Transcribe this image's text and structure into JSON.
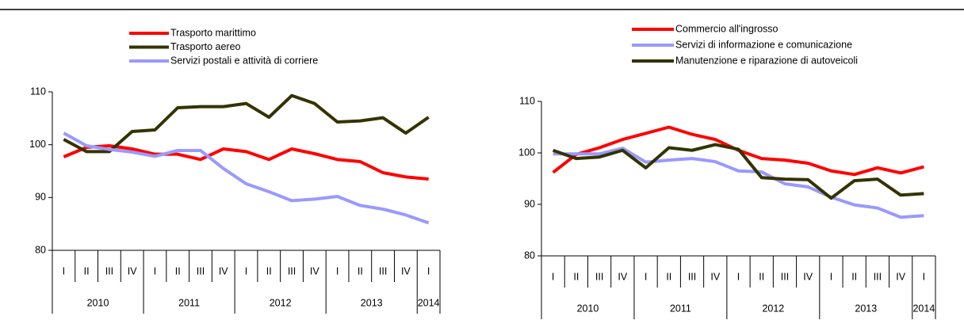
{
  "chart_data": [
    {
      "type": "line",
      "categories": [
        "I",
        "II",
        "III",
        "IV",
        "I",
        "II",
        "III",
        "IV",
        "I",
        "II",
        "III",
        "IV",
        "I",
        "II",
        "III",
        "IV",
        "I"
      ],
      "years": [
        "2010",
        "2011",
        "2012",
        "2013",
        "2014"
      ],
      "ylim": [
        80,
        110
      ],
      "yticks": [
        80,
        90,
        100,
        110
      ],
      "series": [
        {
          "name": "Trasporto marittimo",
          "color": "#ff0000",
          "values": [
            97.7,
            99.5,
            99.8,
            99.2,
            98.2,
            98.2,
            97.2,
            99.2,
            98.7,
            97.2,
            99.2,
            98.3,
            97.2,
            96.8,
            94.7,
            93.9,
            93.5
          ]
        },
        {
          "name": "Trasporto aereo",
          "color": "#333300",
          "values": [
            101,
            98.7,
            98.7,
            102.5,
            102.8,
            107,
            107.2,
            107.2,
            107.8,
            105.2,
            109.3,
            107.8,
            104.3,
            104.5,
            105.1,
            102.2,
            105.2
          ]
        },
        {
          "name": "Servizi postali e attività di corriere",
          "color": "#9999ff",
          "values": [
            102.2,
            99.8,
            99.1,
            98.6,
            97.8,
            98.9,
            98.9,
            95.5,
            92.6,
            91.1,
            89.4,
            89.7,
            90.2,
            88.5,
            87.8,
            86.7,
            85.2
          ]
        }
      ]
    },
    {
      "type": "line",
      "categories": [
        "I",
        "II",
        "III",
        "IV",
        "I",
        "II",
        "III",
        "IV",
        "I",
        "II",
        "III",
        "IV",
        "I",
        "II",
        "III",
        "IV",
        "I"
      ],
      "years": [
        "2010",
        "2011",
        "2012",
        "2013",
        "2014"
      ],
      "ylim": [
        80,
        110
      ],
      "yticks": [
        80,
        90,
        100,
        110
      ],
      "series": [
        {
          "name": "Commercio all'ingrosso",
          "color": "#ff0000",
          "values": [
            96.2,
            99.7,
            101,
            102.6,
            103.8,
            105,
            103.6,
            102.6,
            100.5,
            98.9,
            98.6,
            98,
            96.5,
            95.8,
            97.1,
            96.1,
            97.3
          ]
        },
        {
          "name": "Servizi di informazione e comunicazione",
          "color": "#9999ff",
          "values": [
            99.8,
            99.8,
            99.8,
            100.9,
            98.2,
            98.6,
            98.9,
            98.3,
            96.5,
            96.3,
            94,
            93.4,
            91.4,
            89.9,
            89.3,
            87.5,
            87.8
          ]
        },
        {
          "name": "Manutenzione e riparazione di autoveicoli",
          "color": "#333300",
          "values": [
            100.5,
            98.9,
            99.2,
            100.5,
            97.1,
            101,
            100.5,
            101.6,
            100.7,
            95.2,
            94.9,
            94.8,
            91.2,
            94.6,
            94.9,
            91.8,
            92.1
          ]
        }
      ]
    }
  ]
}
